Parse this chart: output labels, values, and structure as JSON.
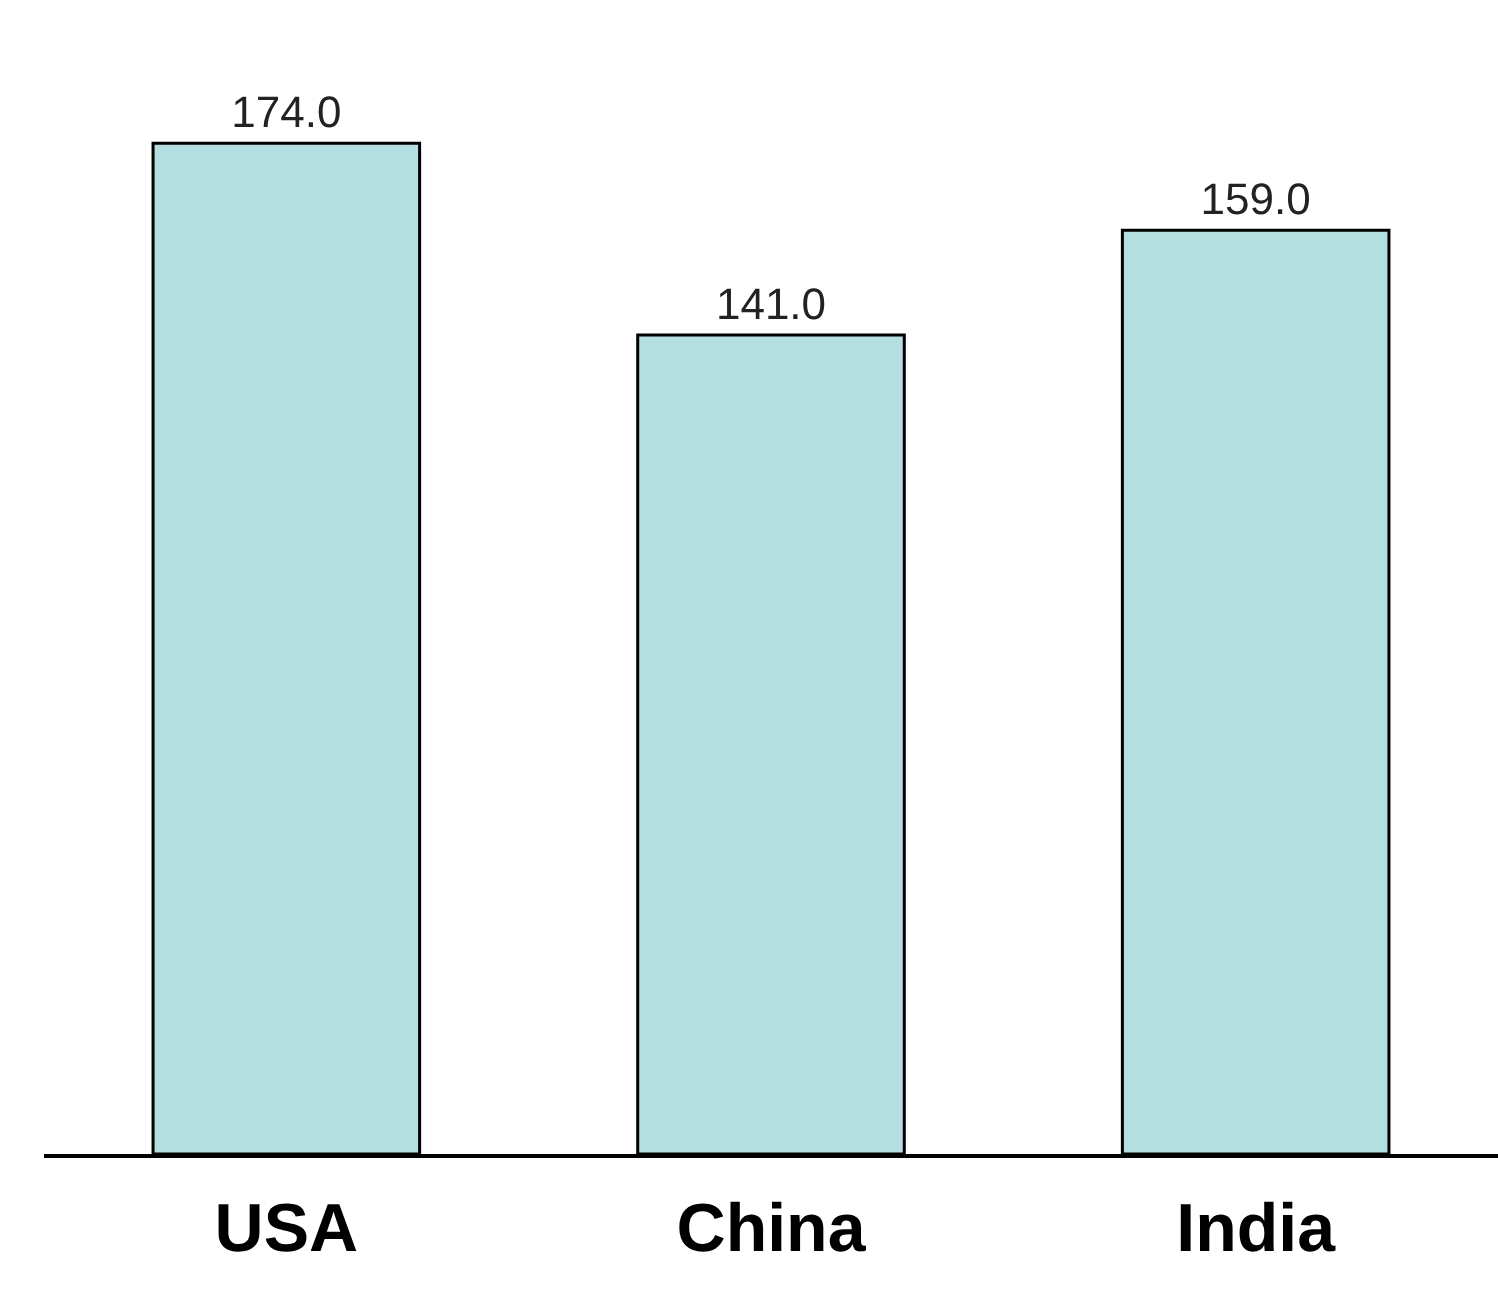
{
  "chart_data": {
    "type": "bar",
    "categories": [
      "USA",
      "China",
      "India"
    ],
    "values": [
      174,
      141,
      159
    ],
    "value_labels": [
      "174.0",
      "141.0",
      "159.0"
    ],
    "color": "#b4dfe1",
    "legend": false
  }
}
